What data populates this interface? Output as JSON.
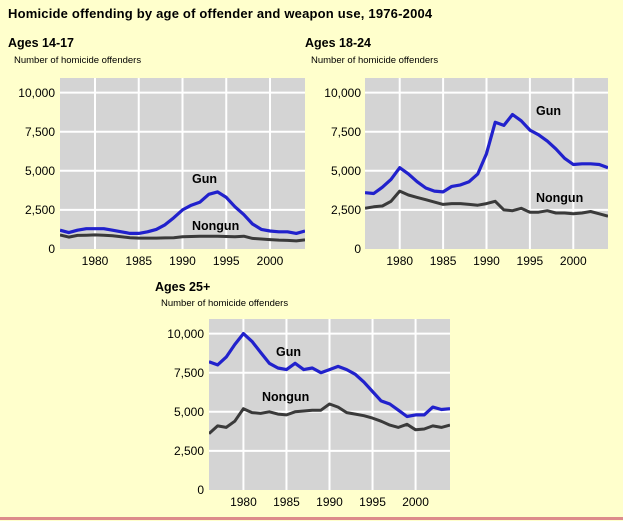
{
  "page": {
    "title": "Homicide offending by age of offender and weapon use, 1976-2004",
    "background_color": "#ffffcc",
    "footer_rule_color": "#dd8b8b"
  },
  "colors": {
    "plot_background": "#d4d4d4",
    "gridline": "#ffffff",
    "gun_line": "#2121cc",
    "nongun_line": "#3a3a3a",
    "text": "#000000"
  },
  "chart_data": [
    {
      "type": "line",
      "title": "Ages 14-17",
      "ylabel": "Number of homicide offenders",
      "x_years": [
        1976,
        1977,
        1978,
        1979,
        1980,
        1981,
        1982,
        1983,
        1984,
        1985,
        1986,
        1987,
        1988,
        1989,
        1990,
        1991,
        1992,
        1993,
        1994,
        1995,
        1996,
        1997,
        1998,
        1999,
        2000,
        2001,
        2002,
        2003,
        2004
      ],
      "xtick_years": [
        1980,
        1985,
        1990,
        1995,
        2000
      ],
      "xtick_labels": [
        "1980",
        "1985",
        "1990",
        "1995",
        "2000"
      ],
      "ytick_values": [
        0,
        2500,
        5000,
        7500,
        10000
      ],
      "ytick_labels": [
        "0",
        "2,500",
        "5,000",
        "7,500",
        "10,000"
      ],
      "ylim": [
        0,
        10900
      ],
      "grid": true,
      "legend": "inline-labels",
      "series": [
        {
          "name": "Nongun",
          "color": "#3a3a3a",
          "values": [
            900,
            760,
            870,
            880,
            900,
            880,
            850,
            780,
            720,
            700,
            700,
            700,
            710,
            720,
            780,
            800,
            820,
            810,
            820,
            800,
            780,
            820,
            680,
            640,
            600,
            570,
            550,
            520,
            580
          ]
        },
        {
          "name": "Gun",
          "color": "#2121cc",
          "values": [
            1200,
            1050,
            1200,
            1300,
            1300,
            1300,
            1200,
            1100,
            1000,
            1000,
            1100,
            1250,
            1550,
            2000,
            2500,
            2800,
            3000,
            3500,
            3650,
            3300,
            2700,
            2200,
            1600,
            1250,
            1150,
            1100,
            1100,
            1000,
            1150
          ]
        }
      ]
    },
    {
      "type": "line",
      "title": "Ages 18-24",
      "ylabel": "Number of homicide offenders",
      "x_years": [
        1976,
        1977,
        1978,
        1979,
        1980,
        1981,
        1982,
        1983,
        1984,
        1985,
        1986,
        1987,
        1988,
        1989,
        1990,
        1991,
        1992,
        1993,
        1994,
        1995,
        1996,
        1997,
        1998,
        1999,
        2000,
        2001,
        2002,
        2003,
        2004
      ],
      "xtick_years": [
        1980,
        1985,
        1990,
        1995,
        2000
      ],
      "xtick_labels": [
        "1980",
        "1985",
        "1990",
        "1995",
        "2000"
      ],
      "ytick_values": [
        0,
        2500,
        5000,
        7500,
        10000
      ],
      "ytick_labels": [
        "0",
        "2,500",
        "5,000",
        "7,500",
        "10,000"
      ],
      "ylim": [
        0,
        10900
      ],
      "grid": true,
      "legend": "inline-labels",
      "series": [
        {
          "name": "Nongun",
          "color": "#3a3a3a",
          "values": [
            2600,
            2700,
            2750,
            3050,
            3700,
            3450,
            3300,
            3150,
            3000,
            2850,
            2900,
            2900,
            2850,
            2800,
            2900,
            3050,
            2500,
            2450,
            2600,
            2350,
            2350,
            2450,
            2300,
            2300,
            2250,
            2300,
            2400,
            2250,
            2100
          ]
        },
        {
          "name": "Gun",
          "color": "#2121cc",
          "values": [
            3600,
            3550,
            3950,
            4450,
            5200,
            4800,
            4300,
            3900,
            3700,
            3650,
            4000,
            4100,
            4300,
            4800,
            6100,
            8100,
            7900,
            8600,
            8200,
            7600,
            7300,
            6900,
            6400,
            5800,
            5400,
            5450,
            5450,
            5400,
            5200
          ]
        }
      ]
    },
    {
      "type": "line",
      "title": "Ages 25+",
      "ylabel": "Number of homicide offenders",
      "x_years": [
        1976,
        1977,
        1978,
        1979,
        1980,
        1981,
        1982,
        1983,
        1984,
        1985,
        1986,
        1987,
        1988,
        1989,
        1990,
        1991,
        1992,
        1993,
        1994,
        1995,
        1996,
        1997,
        1998,
        1999,
        2000,
        2001,
        2002,
        2003,
        2004
      ],
      "xtick_years": [
        1980,
        1985,
        1990,
        1995,
        2000
      ],
      "xtick_labels": [
        "1980",
        "1985",
        "1990",
        "1995",
        "2000"
      ],
      "ytick_values": [
        0,
        2500,
        5000,
        7500,
        10000
      ],
      "ytick_labels": [
        "0",
        "2,500",
        "5,000",
        "7,500",
        "10,000"
      ],
      "ylim": [
        0,
        10900
      ],
      "grid": true,
      "legend": "inline-labels",
      "series": [
        {
          "name": "Nongun",
          "color": "#3a3a3a",
          "values": [
            3600,
            4100,
            4000,
            4400,
            5200,
            4950,
            4900,
            5000,
            4850,
            4800,
            5000,
            5050,
            5100,
            5100,
            5500,
            5300,
            4950,
            4850,
            4750,
            4600,
            4400,
            4150,
            4000,
            4200,
            3850,
            3900,
            4100,
            4000,
            4150
          ]
        },
        {
          "name": "Gun",
          "color": "#2121cc",
          "values": [
            8200,
            8000,
            8500,
            9300,
            10000,
            9500,
            8800,
            8100,
            7800,
            7700,
            8100,
            7700,
            7800,
            7500,
            7700,
            7900,
            7700,
            7400,
            6900,
            6300,
            5700,
            5500,
            5100,
            4700,
            4800,
            4800,
            5300,
            5150,
            5200
          ]
        }
      ]
    }
  ]
}
